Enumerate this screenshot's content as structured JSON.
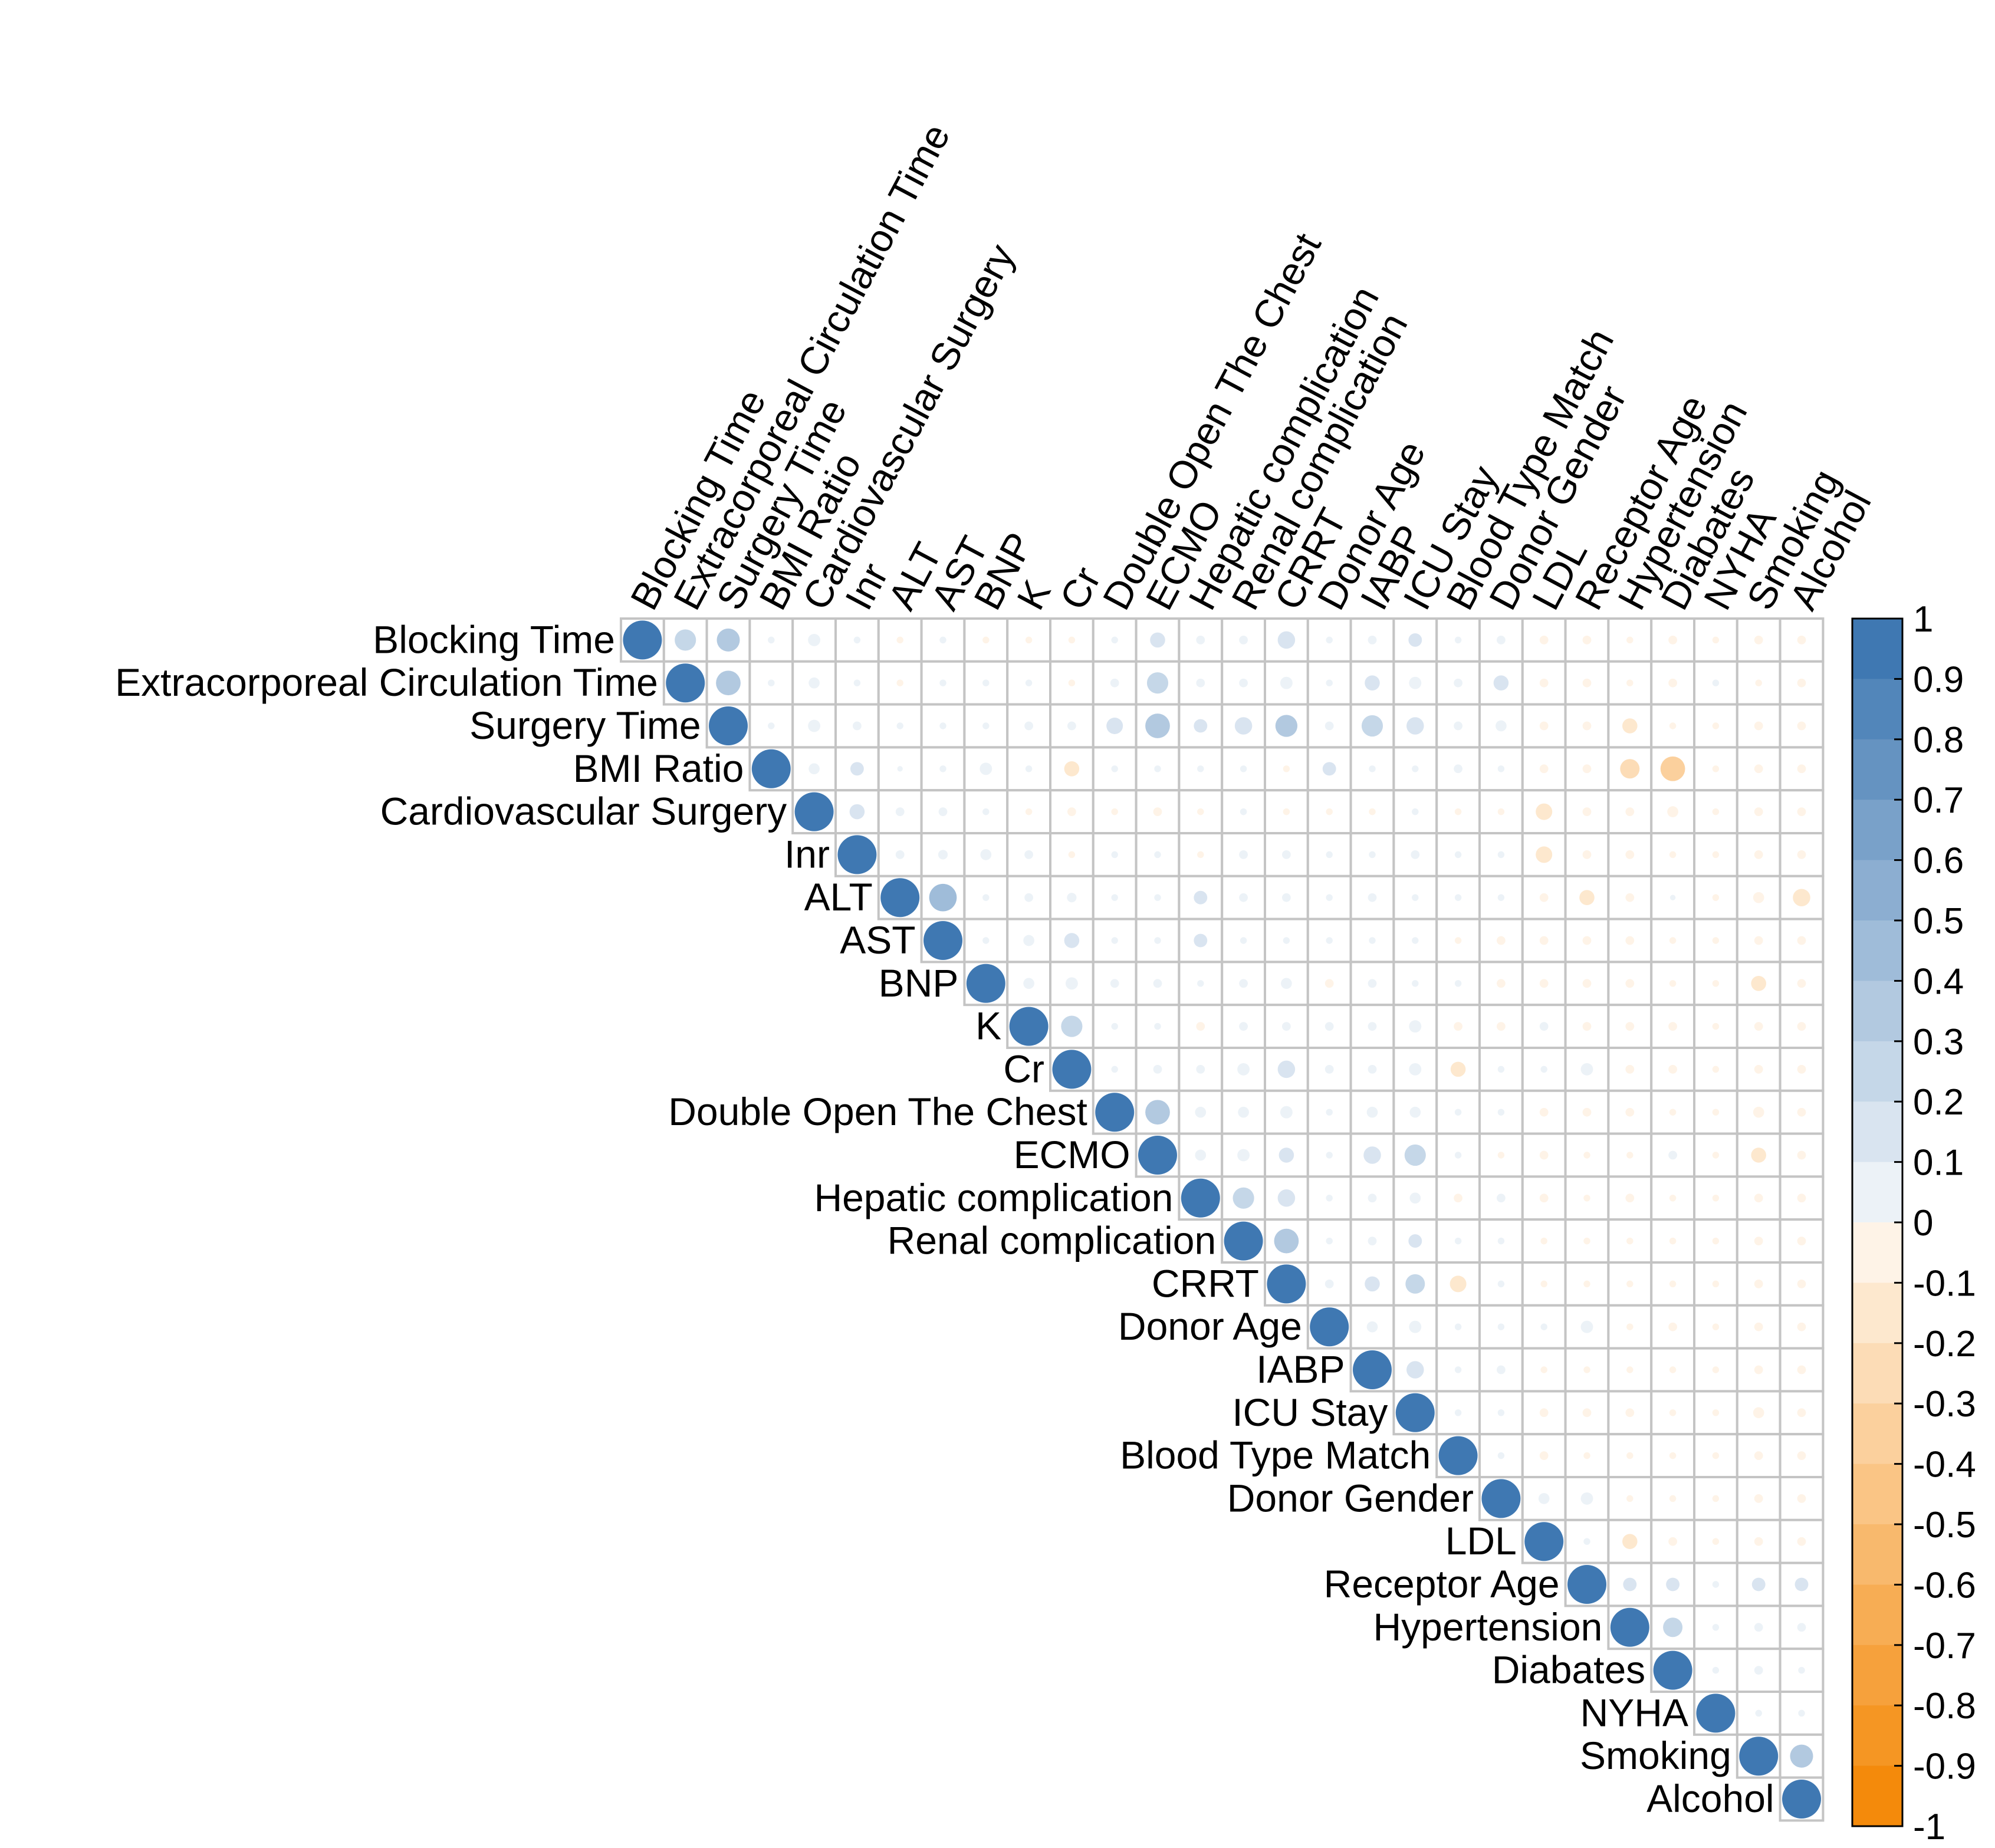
{
  "chart_data": {
    "type": "heatmap",
    "subtype": "correlation-matrix-upper-triangle",
    "variables": [
      "Blocking Time",
      "Extracorporeal Circulation Time",
      "Surgery Time",
      "BMI Ratio",
      "Cardiovascular Surgery",
      "Inr",
      "ALT",
      "AST",
      "BNP",
      "K",
      "Cr",
      "Double Open The Chest",
      "ECMO",
      "Hepatic complication",
      "Renal complication",
      "CRRT",
      "Donor Age",
      "IABP",
      "ICU Stay",
      "Blood Type Match",
      "Donor Gender",
      "LDL",
      "Receptor Age",
      "Hypertension",
      "Diabates",
      "NYHA",
      "Smoking",
      "Alcohol"
    ],
    "values": [
      [
        1,
        0.3,
        0.35,
        0.03,
        0.1,
        0.03,
        -0.03,
        0.03,
        -0.03,
        -0.03,
        -0.03,
        0.03,
        0.15,
        0.05,
        0.05,
        0.2,
        0.03,
        0.05,
        0.12,
        0.03,
        0.05,
        -0.05,
        -0.05,
        -0.03,
        -0.05,
        -0.03,
        -0.05,
        -0.05
      ],
      [
        null,
        1,
        0.4,
        0.03,
        0.08,
        0.03,
        -0.03,
        0.03,
        0.03,
        0.03,
        -0.03,
        0.05,
        0.3,
        0.05,
        0.05,
        0.1,
        0.03,
        0.15,
        0.1,
        0.05,
        0.15,
        -0.05,
        -0.05,
        -0.03,
        -0.05,
        0.03,
        -0.03,
        -0.05
      ],
      [
        null,
        null,
        1,
        0.03,
        0.1,
        0.05,
        0.03,
        0.03,
        0.03,
        0.05,
        0.05,
        0.18,
        0.4,
        0.12,
        0.2,
        0.32,
        0.05,
        0.3,
        0.2,
        0.05,
        0.08,
        -0.05,
        -0.05,
        -0.15,
        -0.03,
        -0.03,
        -0.05,
        -0.05
      ],
      [
        null,
        null,
        null,
        1,
        0.08,
        0.12,
        0.02,
        0.03,
        0.1,
        0.03,
        -0.15,
        0.03,
        0.03,
        0.03,
        0.03,
        -0.03,
        0.12,
        0.03,
        0.03,
        0.05,
        0.03,
        -0.05,
        -0.05,
        -0.25,
        -0.4,
        -0.03,
        -0.05,
        -0.05
      ],
      [
        null,
        null,
        null,
        null,
        1,
        0.15,
        0.05,
        0.05,
        0.03,
        -0.03,
        -0.05,
        -0.03,
        -0.05,
        -0.03,
        0.03,
        -0.03,
        -0.03,
        -0.03,
        0.03,
        -0.03,
        -0.03,
        -0.18,
        -0.05,
        -0.05,
        -0.08,
        -0.03,
        -0.05,
        -0.05
      ],
      [
        null,
        null,
        null,
        null,
        null,
        1,
        0.05,
        0.06,
        0.08,
        0.05,
        -0.03,
        0.03,
        0.03,
        -0.03,
        0.05,
        0.05,
        0.03,
        0.03,
        0.05,
        0.03,
        0.03,
        -0.18,
        -0.05,
        -0.05,
        -0.03,
        -0.03,
        -0.05,
        -0.05
      ],
      [
        null,
        null,
        null,
        null,
        null,
        null,
        1,
        0.5,
        0.03,
        0.05,
        0.06,
        0.03,
        0.03,
        0.12,
        0.05,
        0.05,
        0.03,
        0.05,
        0.03,
        0.03,
        0.03,
        -0.05,
        -0.15,
        -0.05,
        0.02,
        -0.03,
        -0.08,
        -0.2
      ],
      [
        null,
        null,
        null,
        null,
        null,
        null,
        null,
        1,
        0.03,
        0.08,
        0.15,
        0.03,
        0.03,
        0.12,
        0.03,
        0.03,
        0.03,
        0.03,
        0.03,
        -0.03,
        -0.05,
        -0.05,
        -0.05,
        -0.05,
        -0.03,
        -0.03,
        -0.05,
        -0.05
      ],
      [
        null,
        null,
        null,
        null,
        null,
        null,
        null,
        null,
        1,
        0.08,
        0.1,
        0.05,
        0.05,
        0.03,
        0.05,
        0.08,
        -0.05,
        0.05,
        0.03,
        0.03,
        -0.05,
        -0.05,
        -0.05,
        -0.05,
        -0.03,
        -0.03,
        -0.15,
        -0.05
      ],
      [
        null,
        null,
        null,
        null,
        null,
        null,
        null,
        null,
        null,
        1,
        0.3,
        0.03,
        0.03,
        -0.05,
        0.05,
        0.05,
        0.05,
        0.05,
        0.1,
        -0.05,
        -0.05,
        0.05,
        -0.05,
        -0.05,
        -0.05,
        -0.03,
        -0.05,
        -0.05
      ],
      [
        null,
        null,
        null,
        null,
        null,
        null,
        null,
        null,
        null,
        null,
        1,
        0.03,
        0.05,
        0.05,
        0.1,
        0.2,
        0.05,
        0.05,
        0.1,
        -0.15,
        0.03,
        0.03,
        0.1,
        -0.05,
        -0.05,
        -0.03,
        -0.05,
        -0.05
      ],
      [
        null,
        null,
        null,
        null,
        null,
        null,
        null,
        null,
        null,
        null,
        null,
        1,
        0.4,
        0.08,
        0.08,
        0.1,
        0.03,
        0.08,
        0.08,
        0.03,
        0.03,
        -0.05,
        -0.05,
        -0.05,
        -0.03,
        -0.03,
        -0.08,
        -0.05
      ],
      [
        null,
        null,
        null,
        null,
        null,
        null,
        null,
        null,
        null,
        null,
        null,
        null,
        1,
        0.08,
        0.1,
        0.15,
        0.03,
        0.2,
        0.3,
        0.03,
        -0.03,
        -0.05,
        -0.03,
        -0.03,
        0.05,
        -0.03,
        -0.15,
        -0.05
      ],
      [
        null,
        null,
        null,
        null,
        null,
        null,
        null,
        null,
        null,
        null,
        null,
        null,
        null,
        1,
        0.3,
        0.2,
        0.03,
        0.05,
        0.08,
        -0.05,
        0.05,
        -0.05,
        -0.03,
        -0.05,
        -0.03,
        -0.03,
        -0.05,
        -0.05
      ],
      [
        null,
        null,
        null,
        null,
        null,
        null,
        null,
        null,
        null,
        null,
        null,
        null,
        null,
        null,
        1,
        0.4,
        0.03,
        0.05,
        0.12,
        0.03,
        0.03,
        -0.03,
        -0.03,
        -0.03,
        -0.03,
        -0.03,
        -0.05,
        -0.05
      ],
      [
        null,
        null,
        null,
        null,
        null,
        null,
        null,
        null,
        null,
        null,
        null,
        null,
        null,
        null,
        null,
        1,
        0.05,
        0.15,
        0.25,
        -0.18,
        0.03,
        -0.03,
        -0.03,
        -0.03,
        -0.03,
        -0.03,
        -0.05,
        -0.05
      ],
      [
        null,
        null,
        null,
        null,
        null,
        null,
        null,
        null,
        null,
        null,
        null,
        null,
        null,
        null,
        null,
        null,
        1,
        0.08,
        0.1,
        0.03,
        0.03,
        0.03,
        0.1,
        -0.03,
        -0.05,
        -0.03,
        -0.05,
        -0.05
      ],
      [
        null,
        null,
        null,
        null,
        null,
        null,
        null,
        null,
        null,
        null,
        null,
        null,
        null,
        null,
        null,
        null,
        null,
        1,
        0.2,
        0.03,
        0.05,
        -0.03,
        -0.03,
        -0.03,
        -0.03,
        -0.03,
        -0.05,
        -0.05
      ],
      [
        null,
        null,
        null,
        null,
        null,
        null,
        null,
        null,
        null,
        null,
        null,
        null,
        null,
        null,
        null,
        null,
        null,
        null,
        1,
        0.03,
        0.03,
        -0.05,
        -0.05,
        -0.05,
        -0.03,
        -0.03,
        -0.08,
        -0.05
      ],
      [
        null,
        null,
        null,
        null,
        null,
        null,
        null,
        null,
        null,
        null,
        null,
        null,
        null,
        null,
        null,
        null,
        null,
        null,
        null,
        1,
        0.03,
        -0.05,
        -0.03,
        -0.03,
        -0.03,
        -0.03,
        -0.05,
        -0.05
      ],
      [
        null,
        null,
        null,
        null,
        null,
        null,
        null,
        null,
        null,
        null,
        null,
        null,
        null,
        null,
        null,
        null,
        null,
        null,
        null,
        null,
        1,
        0.08,
        0.1,
        -0.03,
        -0.03,
        -0.03,
        -0.05,
        -0.05
      ],
      [
        null,
        null,
        null,
        null,
        null,
        null,
        null,
        null,
        null,
        null,
        null,
        null,
        null,
        null,
        null,
        null,
        null,
        null,
        null,
        null,
        null,
        1,
        0.03,
        -0.15,
        -0.05,
        -0.03,
        -0.05,
        -0.05
      ],
      [
        null,
        null,
        null,
        null,
        null,
        null,
        null,
        null,
        null,
        null,
        null,
        null,
        null,
        null,
        null,
        null,
        null,
        null,
        null,
        null,
        null,
        null,
        1,
        0.12,
        0.12,
        0.03,
        0.12,
        0.12
      ],
      [
        null,
        null,
        null,
        null,
        null,
        null,
        null,
        null,
        null,
        null,
        null,
        null,
        null,
        null,
        null,
        null,
        null,
        null,
        null,
        null,
        null,
        null,
        null,
        1,
        0.25,
        0.03,
        0.05,
        0.05
      ],
      [
        null,
        null,
        null,
        null,
        null,
        null,
        null,
        null,
        null,
        null,
        null,
        null,
        null,
        null,
        null,
        null,
        null,
        null,
        null,
        null,
        null,
        null,
        null,
        null,
        1,
        0.03,
        0.05,
        0.03
      ],
      [
        null,
        null,
        null,
        null,
        null,
        null,
        null,
        null,
        null,
        null,
        null,
        null,
        null,
        null,
        null,
        null,
        null,
        null,
        null,
        null,
        null,
        null,
        null,
        null,
        null,
        1,
        0.03,
        0.03
      ],
      [
        null,
        null,
        null,
        null,
        null,
        null,
        null,
        null,
        null,
        null,
        null,
        null,
        null,
        null,
        null,
        null,
        null,
        null,
        null,
        null,
        null,
        null,
        null,
        null,
        null,
        null,
        1,
        0.35
      ],
      [
        null,
        null,
        null,
        null,
        null,
        null,
        null,
        null,
        null,
        null,
        null,
        null,
        null,
        null,
        null,
        null,
        null,
        null,
        null,
        null,
        null,
        null,
        null,
        null,
        null,
        null,
        null,
        1
      ]
    ],
    "colorbar": {
      "ticks": [
        "1",
        "0.9",
        "0.8",
        "0.7",
        "0.6",
        "0.5",
        "0.4",
        "0.3",
        "0.2",
        "0.1",
        "0",
        "-0.1",
        "-0.2",
        "-0.3",
        "-0.4",
        "-0.5",
        "-0.6",
        "-0.7",
        "-0.8",
        "-0.9",
        "-1"
      ],
      "range": [
        -1,
        1
      ],
      "positive_color": "#3f78b2",
      "negative_color": "#f48a0b",
      "neutral_color": "#ffffff",
      "placement": "right"
    },
    "grid": true,
    "grid_color": "#c4c4c4"
  }
}
